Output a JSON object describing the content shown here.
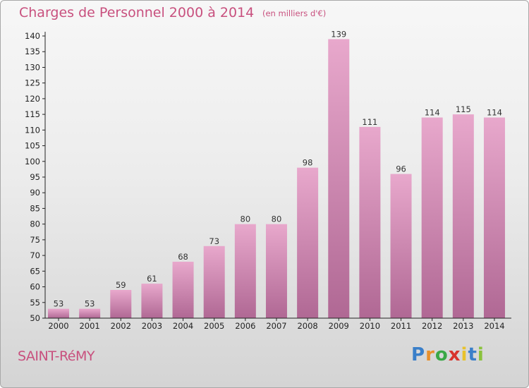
{
  "title": "Charges de Personnel 2000 à 2014",
  "subtitle": "(en milliers d'€)",
  "location": "SAINT-RéMY",
  "logo": {
    "letters": [
      "P",
      "r",
      "o",
      "x",
      "i",
      "t",
      "i"
    ],
    "colors": [
      "#3a7fc9",
      "#e8902c",
      "#3aa846",
      "#d8342c",
      "#e8c22c",
      "#3a7fc9",
      "#8ac23c"
    ]
  },
  "colors": {
    "bar_top": "#e8a8cc",
    "bar_bottom": "#b06894",
    "text": "#c8507e"
  },
  "chart_data": {
    "type": "bar",
    "categories": [
      "2000",
      "2001",
      "2002",
      "2003",
      "2004",
      "2005",
      "2006",
      "2007",
      "2008",
      "2009",
      "2010",
      "2011",
      "2012",
      "2013",
      "2014"
    ],
    "values": [
      53,
      53,
      59,
      61,
      68,
      73,
      80,
      80,
      98,
      139,
      111,
      96,
      114,
      115,
      114
    ],
    "ylim": [
      50,
      140
    ],
    "yticks": [
      50,
      55,
      60,
      65,
      70,
      75,
      80,
      85,
      90,
      95,
      100,
      105,
      110,
      115,
      120,
      125,
      130,
      135,
      140
    ],
    "xlabel": "",
    "ylabel": "",
    "grid": false,
    "legend": "none"
  }
}
